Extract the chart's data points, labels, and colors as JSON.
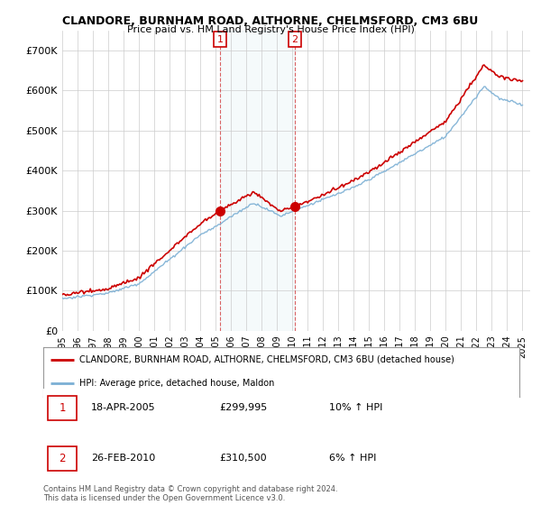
{
  "title": "CLANDORE, BURNHAM ROAD, ALTHORNE, CHELMSFORD, CM3 6BU",
  "subtitle": "Price paid vs. HM Land Registry's House Price Index (HPI)",
  "ylim": [
    0,
    750000
  ],
  "yticks": [
    0,
    100000,
    200000,
    300000,
    400000,
    500000,
    600000,
    700000
  ],
  "ytick_labels": [
    "£0",
    "£100K",
    "£200K",
    "£300K",
    "£400K",
    "£500K",
    "£600K",
    "£700K"
  ],
  "sale1_year": 2005.3,
  "sale1_price": 299995,
  "sale1_label": "1",
  "sale1_date": "18-APR-2005",
  "sale1_hpi_text": "10% ↑ HPI",
  "sale1_price_text": "£299,995",
  "sale2_year": 2010.15,
  "sale2_price": 310500,
  "sale2_label": "2",
  "sale2_date": "26-FEB-2010",
  "sale2_hpi_text": "6% ↑ HPI",
  "sale2_price_text": "£310,500",
  "red_color": "#cc0000",
  "blue_color": "#7bafd4",
  "legend_label_red": "CLANDORE, BURNHAM ROAD, ALTHORNE, CHELMSFORD, CM3 6BU (detached house)",
  "legend_label_blue": "HPI: Average price, detached house, Maldon",
  "footnote": "Contains HM Land Registry data © Crown copyright and database right 2024.\nThis data is licensed under the Open Government Licence v3.0.",
  "background_color": "#ffffff",
  "grid_color": "#cccccc"
}
